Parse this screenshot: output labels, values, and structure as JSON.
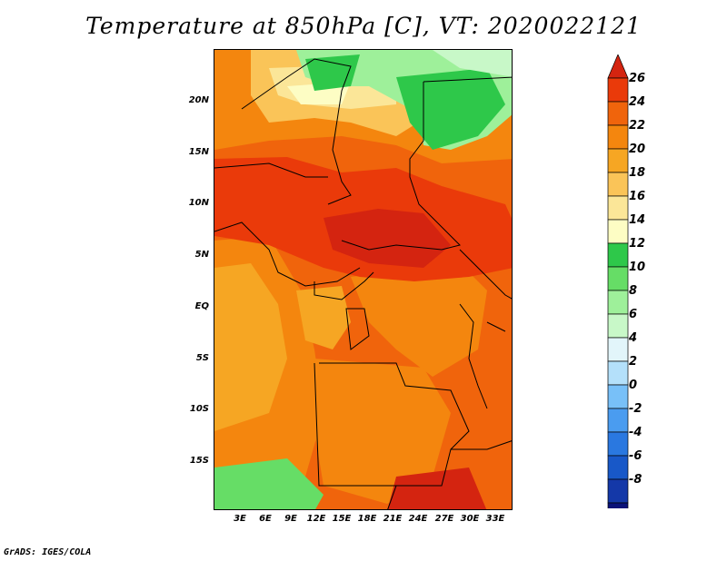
{
  "title": "Temperature at 850hPa [C], VT: 2020022121",
  "credit": "GrADS: IGES/COLA",
  "map": {
    "lat_labels": [
      "20N",
      "15N",
      "10N",
      "5N",
      "EQ",
      "5S",
      "10S",
      "15S"
    ],
    "lon_labels": [
      "3E",
      "6E",
      "9E",
      "12E",
      "15E",
      "18E",
      "21E",
      "24E",
      "27E",
      "30E",
      "33E"
    ]
  },
  "colorbar": {
    "labels": [
      "26",
      "24",
      "22",
      "20",
      "18",
      "16",
      "14",
      "12",
      "10",
      "8",
      "6",
      "4",
      "2",
      "0",
      "-2",
      "-4",
      "-6",
      "-8"
    ],
    "colors": [
      "#d42410",
      "#ea3a0a",
      "#f0640c",
      "#f4860e",
      "#f6a623",
      "#fac458",
      "#fbe698",
      "#fdfdc4",
      "#2ec84a",
      "#66dd66",
      "#9ef09a",
      "#c8f8c8",
      "#e2f5fa",
      "#b4e0fa",
      "#78c0f8",
      "#4a9cf0",
      "#2a78e0",
      "#1858c8",
      "#1438a8",
      "#0a1278"
    ],
    "under_color": "#d8d8f8"
  }
}
